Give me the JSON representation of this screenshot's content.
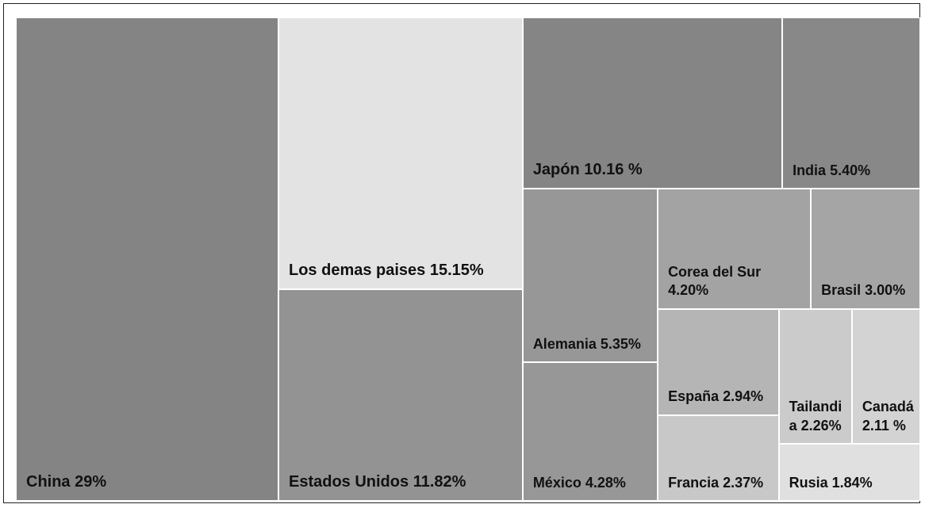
{
  "chart_data": {
    "type": "treemap",
    "categories": [
      "China",
      "Los demas paises",
      "Estados Unidos",
      "Japón",
      "India",
      "Alemania",
      "México",
      "Corea del Sur",
      "Brasil",
      "España",
      "Francia",
      "Tailandia",
      "Canadá",
      "Rusia"
    ],
    "values": [
      29,
      15.15,
      11.82,
      10.16,
      5.4,
      5.35,
      4.28,
      4.2,
      3.0,
      2.94,
      2.37,
      2.26,
      2.11,
      1.84
    ],
    "value_labels": [
      "29%",
      "15.15%",
      "11.82%",
      "10.16 %",
      "5.40%",
      "5.35%",
      "4.28%",
      "4.20%",
      "3.00%",
      "2.94%",
      "2.37%",
      "2.26%",
      "2.11 %",
      "1.84%"
    ],
    "colors": [
      "#848484",
      "#e3e3e3",
      "#939393",
      "#858585",
      "#888888",
      "#979797",
      "#979797",
      "#a3a3a3",
      "#a5a5a5",
      "#b5b5b5",
      "#c8c8c8",
      "#cbcbcb",
      "#d3d3d3",
      "#e0e0e0"
    ]
  }
}
